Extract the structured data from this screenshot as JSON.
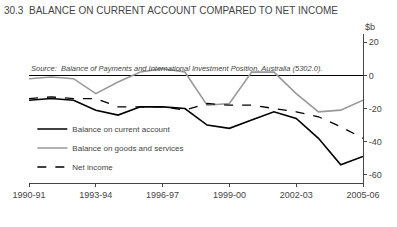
{
  "chart_data": {
    "type": "line",
    "title": "30.3  BALANCE ON CURRENT ACCOUNT COMPARED TO NET INCOME",
    "ylabel": "$b",
    "annotations": [
      "Source:  Balance of Payments and International Investment Position, Australia (5302.0)."
    ],
    "categories": [
      "1990-91",
      null,
      null,
      "1993-94",
      null,
      null,
      "1996-97",
      null,
      null,
      "1999-00",
      null,
      null,
      "2002-03",
      null,
      null,
      "2005-06"
    ],
    "series": [
      {
        "name": "Balance on current account",
        "color": "#000000",
        "line_style": "solid",
        "values": [
          -15,
          -14,
          -15,
          -21,
          -24,
          -19,
          -19,
          -20,
          -30,
          -32,
          -27,
          -22,
          -26,
          -38,
          -54,
          -49
        ]
      },
      {
        "name": "Balance on goods and services",
        "color": "#999999",
        "line_style": "solid",
        "values": [
          -2,
          -1,
          -2,
          -11,
          -4,
          2,
          4,
          2,
          -18,
          -17,
          2,
          2,
          -11,
          -22,
          -21,
          -15
        ]
      },
      {
        "name": "Net income",
        "color": "#000000",
        "line_style": "dashed",
        "values": [
          -14,
          -13,
          -14,
          -14,
          -19,
          -19,
          -19,
          -21,
          -17,
          -18,
          -18,
          -20,
          -22,
          -25,
          -31,
          -38
        ]
      }
    ],
    "ylim": [
      -65,
      25
    ],
    "yticks": [
      -60,
      -40,
      -20,
      0,
      20
    ],
    "grid": false,
    "legend": "lower left"
  }
}
